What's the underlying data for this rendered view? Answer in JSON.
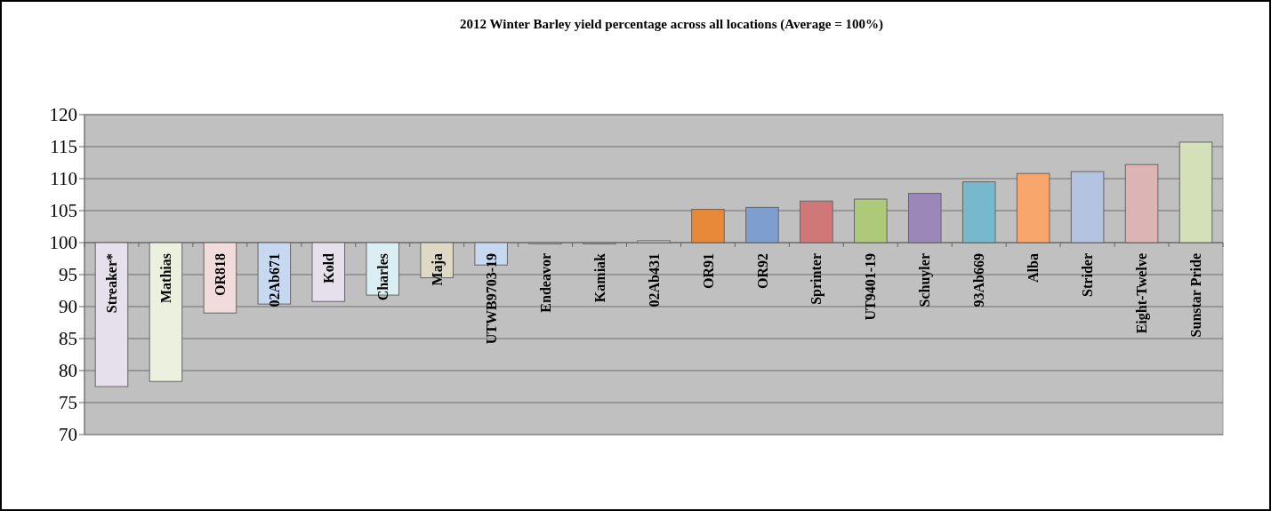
{
  "chart_data": {
    "type": "bar",
    "title": "2012 Winter Barley yield percentage across all locations (Average = 100%)",
    "categories": [
      "Streaker*",
      "Mathias",
      "OR818",
      "02Ab671",
      "Kold",
      "Charles",
      "Maja",
      "UTWB9703-19",
      "Endeavor",
      "Kamiak",
      "02Ab431",
      "OR91",
      "OR92",
      "Sprinter",
      "UT9401-19",
      "Schuyler",
      "93Ab669",
      "Alba",
      "Strider",
      "Eight-Twelve",
      "Sunstar Pride"
    ],
    "base": [
      100,
      100,
      100,
      100,
      100,
      100,
      100,
      100,
      100,
      100,
      100,
      100,
      100,
      100,
      100,
      100,
      100,
      100,
      100,
      100,
      100
    ],
    "values": [
      -22.5,
      -21.7,
      -11,
      -9.6,
      -9.2,
      -8.2,
      -5.5,
      -3.5,
      -0.2,
      -0.2,
      0.3,
      5.2,
      5.5,
      6.5,
      6.8,
      7.7,
      9.5,
      10.8,
      11.1,
      12.2,
      15.7
    ],
    "colors": [
      "#e6e0ec",
      "#ebf1de",
      "#f2dcdb",
      "#c6d9f1",
      "#e6e0ec",
      "#dbeef4",
      "#ddd9c4",
      "#c6d9f1",
      "#ddd9c4",
      "#e6b9b8",
      "#d9d9d9",
      "#e8893a",
      "#7f9ed0",
      "#d07878",
      "#afc97a",
      "#9b88b8",
      "#78b8cc",
      "#f9a66c",
      "#b4c4e0",
      "#ddb4b4",
      "#d3e0b8"
    ],
    "ylim": [
      70,
      120
    ],
    "yticks": [
      70,
      75,
      80,
      85,
      90,
      95,
      100,
      105,
      110,
      115,
      120
    ],
    "grid": "y"
  }
}
